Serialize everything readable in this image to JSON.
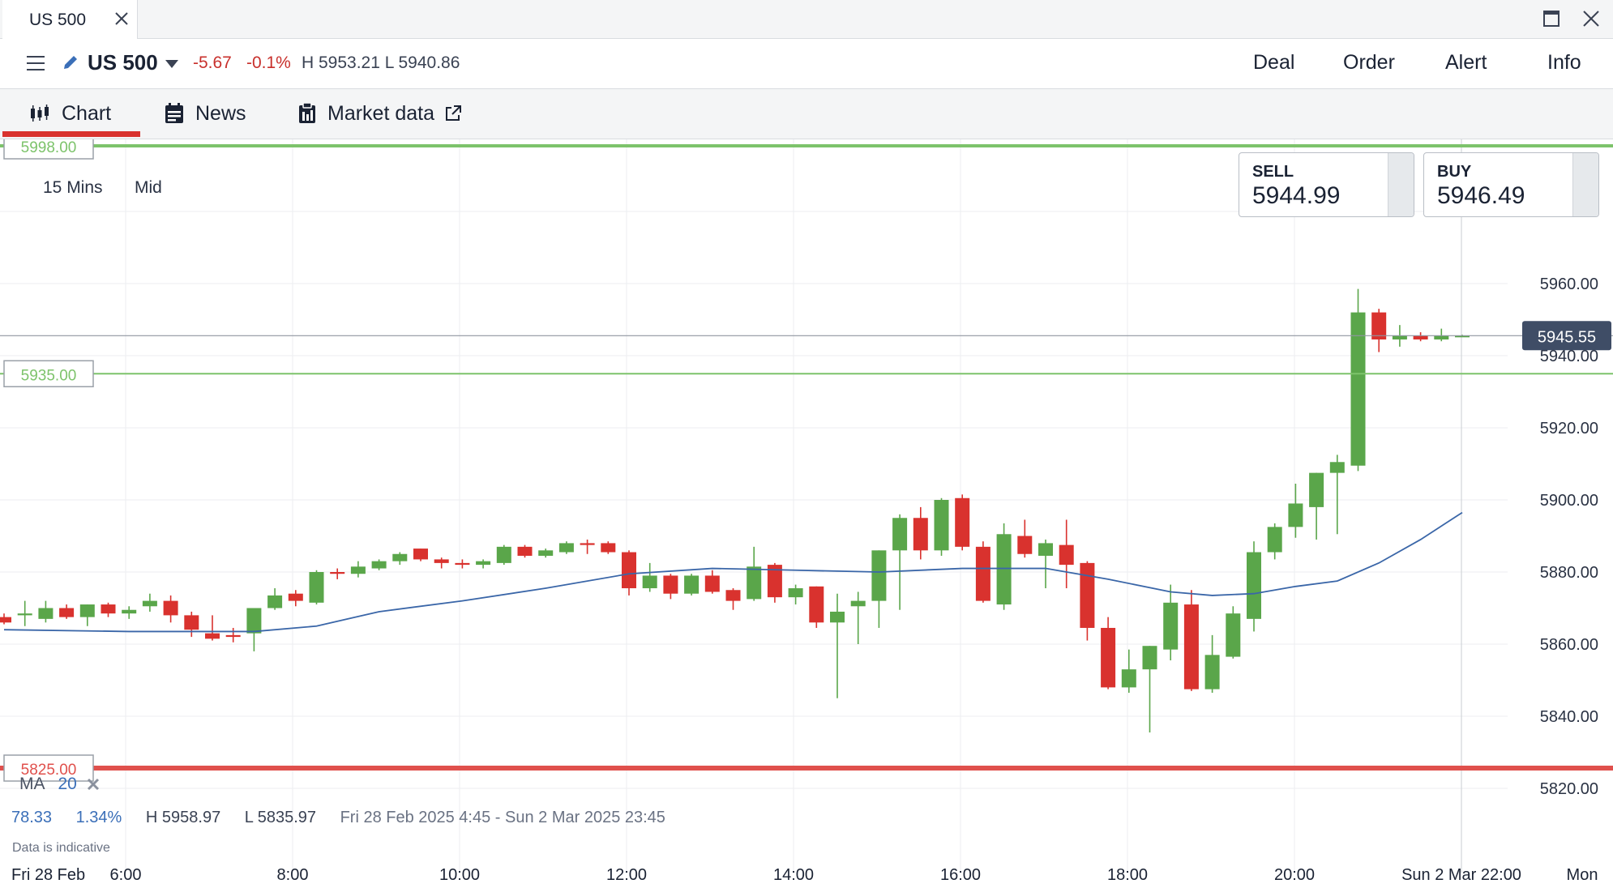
{
  "window": {
    "tab_title": "US 500"
  },
  "header": {
    "instrument": "US 500",
    "change_points": "-5.67",
    "change_percent": "-0.1%",
    "high_low": "H 5953.21  L 5940.86",
    "actions": [
      "Deal",
      "Order",
      "Alert",
      "Info"
    ]
  },
  "subtabs": {
    "chart": "Chart",
    "news": "News",
    "market_data": "Market data"
  },
  "chart": {
    "timeframe": "15 Mins",
    "price_mode": "Mid",
    "sell_label": "SELL",
    "sell_price": "5944.99",
    "buy_label": "BUY",
    "buy_price": "5946.49",
    "current_price": "5945.55",
    "ma_name": "MA",
    "ma_period": "20",
    "stat_change": "78.33",
    "stat_percent": "1.34%",
    "stat_high": "H 5958.97",
    "stat_low": "L 5835.97",
    "stat_range": "Fri 28 Feb 2025 4:45 - Sun 2 Mar 2025 23:45",
    "disclaimer": "Data is indicative",
    "colors": {
      "up": "#5aa64a",
      "down": "#d9322e",
      "ma": "#3a66a8",
      "level_green": "#7dc36b",
      "level_red": "#e0504c"
    }
  },
  "chart_data": {
    "type": "candlestick",
    "y_ticks": [
      "5960.00",
      "5940.00",
      "5920.00",
      "5900.00",
      "5880.00",
      "5860.00",
      "5840.00",
      "5820.00"
    ],
    "ylim": [
      5816,
      5998
    ],
    "x_ticks": [
      "Fri 28 Feb",
      "6:00",
      "8:00",
      "10:00",
      "12:00",
      "14:00",
      "16:00",
      "18:00",
      "20:00",
      "Sun 2 Mar 22:00",
      "Mon"
    ],
    "levels": [
      {
        "value": 5998.0,
        "label": "5998.00",
        "color": "green"
      },
      {
        "value": 5935.0,
        "label": "5935.00",
        "color": "green"
      },
      {
        "value": 5825.0,
        "label": "5825.00",
        "color": "red"
      }
    ],
    "current_price": 5945.55,
    "candles": [
      {
        "t": "4:45",
        "o": 5867.5,
        "h": 5868.5,
        "l": 5865.5,
        "c": 5866.0
      },
      {
        "t": "5:00",
        "o": 5868.0,
        "h": 5872.0,
        "l": 5865.0,
        "c": 5868.5
      },
      {
        "t": "5:15",
        "o": 5867.0,
        "h": 5872.0,
        "l": 5866.0,
        "c": 5870.0
      },
      {
        "t": "5:30",
        "o": 5870.0,
        "h": 5871.0,
        "l": 5867.0,
        "c": 5867.5
      },
      {
        "t": "5:45",
        "o": 5867.5,
        "h": 5871.0,
        "l": 5865.0,
        "c": 5871.0
      },
      {
        "t": "6:00",
        "o": 5871.0,
        "h": 5871.5,
        "l": 5867.5,
        "c": 5868.5
      },
      {
        "t": "6:15",
        "o": 5868.5,
        "h": 5870.5,
        "l": 5867.0,
        "c": 5869.5
      },
      {
        "t": "6:30",
        "o": 5870.5,
        "h": 5874.0,
        "l": 5869.0,
        "c": 5872.0
      },
      {
        "t": "6:45",
        "o": 5872.0,
        "h": 5873.5,
        "l": 5866.0,
        "c": 5868.0
      },
      {
        "t": "7:00",
        "o": 5868.0,
        "h": 5869.0,
        "l": 5862.0,
        "c": 5864.0
      },
      {
        "t": "7:15",
        "o": 5863.0,
        "h": 5868.0,
        "l": 5861.0,
        "c": 5861.5
      },
      {
        "t": "7:30",
        "o": 5862.5,
        "h": 5864.5,
        "l": 5860.5,
        "c": 5862.0
      },
      {
        "t": "7:45",
        "o": 5863.0,
        "h": 5870.0,
        "l": 5858.0,
        "c": 5870.0
      },
      {
        "t": "8:00",
        "o": 5870.0,
        "h": 5875.5,
        "l": 5869.5,
        "c": 5873.5
      },
      {
        "t": "8:15",
        "o": 5874.0,
        "h": 5875.0,
        "l": 5870.5,
        "c": 5872.0
      },
      {
        "t": "8:30",
        "o": 5871.5,
        "h": 5880.5,
        "l": 5871.0,
        "c": 5880.0
      },
      {
        "t": "8:45",
        "o": 5880.0,
        "h": 5881.0,
        "l": 5878.0,
        "c": 5879.5
      },
      {
        "t": "9:00",
        "o": 5879.5,
        "h": 5883.0,
        "l": 5878.5,
        "c": 5881.5
      },
      {
        "t": "9:15",
        "o": 5881.0,
        "h": 5883.5,
        "l": 5880.5,
        "c": 5883.0
      },
      {
        "t": "9:30",
        "o": 5883.0,
        "h": 5885.5,
        "l": 5882.0,
        "c": 5885.0
      },
      {
        "t": "9:45",
        "o": 5886.5,
        "h": 5886.5,
        "l": 5883.0,
        "c": 5883.5
      },
      {
        "t": "10:00",
        "o": 5883.5,
        "h": 5884.0,
        "l": 5881.0,
        "c": 5882.5
      },
      {
        "t": "10:15",
        "o": 5882.5,
        "h": 5883.5,
        "l": 5881.0,
        "c": 5882.0
      },
      {
        "t": "10:30",
        "o": 5882.0,
        "h": 5883.5,
        "l": 5881.0,
        "c": 5883.0
      },
      {
        "t": "10:45",
        "o": 5882.5,
        "h": 5887.5,
        "l": 5882.0,
        "c": 5887.0
      },
      {
        "t": "11:00",
        "o": 5887.0,
        "h": 5887.5,
        "l": 5884.0,
        "c": 5884.5
      },
      {
        "t": "11:15",
        "o": 5884.5,
        "h": 5886.5,
        "l": 5884.0,
        "c": 5886.0
      },
      {
        "t": "11:30",
        "o": 5885.5,
        "h": 5888.5,
        "l": 5885.0,
        "c": 5888.0
      },
      {
        "t": "11:45",
        "o": 5888.0,
        "h": 5889.0,
        "l": 5885.0,
        "c": 5887.5
      },
      {
        "t": "12:00",
        "o": 5888.0,
        "h": 5888.5,
        "l": 5885.0,
        "c": 5885.5
      },
      {
        "t": "12:15",
        "o": 5885.5,
        "h": 5886.0,
        "l": 5873.5,
        "c": 5875.5
      },
      {
        "t": "12:30",
        "o": 5875.5,
        "h": 5882.5,
        "l": 5874.5,
        "c": 5879.0
      },
      {
        "t": "12:45",
        "o": 5879.0,
        "h": 5879.5,
        "l": 5872.5,
        "c": 5874.0
      },
      {
        "t": "13:00",
        "o": 5874.0,
        "h": 5879.5,
        "l": 5873.5,
        "c": 5879.0
      },
      {
        "t": "13:15",
        "o": 5879.0,
        "h": 5880.5,
        "l": 5874.0,
        "c": 5874.5
      },
      {
        "t": "13:30",
        "o": 5875.0,
        "h": 5875.5,
        "l": 5869.5,
        "c": 5872.0
      },
      {
        "t": "13:45",
        "o": 5872.5,
        "h": 5887.0,
        "l": 5872.0,
        "c": 5881.5
      },
      {
        "t": "14:00",
        "o": 5882.0,
        "h": 5882.5,
        "l": 5871.5,
        "c": 5873.0
      },
      {
        "t": "14:15",
        "o": 5873.0,
        "h": 5876.5,
        "l": 5871.0,
        "c": 5875.5
      },
      {
        "t": "14:30",
        "o": 5876.0,
        "h": 5876.0,
        "l": 5864.5,
        "c": 5866.0
      },
      {
        "t": "14:45",
        "o": 5866.0,
        "h": 5874.0,
        "l": 5845.0,
        "c": 5869.0
      },
      {
        "t": "15:00",
        "o": 5870.5,
        "h": 5874.5,
        "l": 5860.0,
        "c": 5872.0
      },
      {
        "t": "15:15",
        "o": 5872.0,
        "h": 5886.0,
        "l": 5864.5,
        "c": 5886.0
      },
      {
        "t": "15:30",
        "o": 5886.0,
        "h": 5896.0,
        "l": 5869.5,
        "c": 5895.0
      },
      {
        "t": "15:45",
        "o": 5895.0,
        "h": 5898.0,
        "l": 5883.5,
        "c": 5886.0
      },
      {
        "t": "16:00",
        "o": 5886.0,
        "h": 5900.5,
        "l": 5884.5,
        "c": 5900.0
      },
      {
        "t": "16:15",
        "o": 5900.5,
        "h": 5901.5,
        "l": 5886.0,
        "c": 5887.0
      },
      {
        "t": "16:30",
        "o": 5887.0,
        "h": 5888.5,
        "l": 5871.5,
        "c": 5872.0
      },
      {
        "t": "16:45",
        "o": 5871.0,
        "h": 5893.5,
        "l": 5869.5,
        "c": 5890.5
      },
      {
        "t": "17:00",
        "o": 5890.0,
        "h": 5894.5,
        "l": 5884.0,
        "c": 5885.0
      },
      {
        "t": "17:15",
        "o": 5884.5,
        "h": 5889.0,
        "l": 5875.5,
        "c": 5888.0
      },
      {
        "t": "17:30",
        "o": 5887.5,
        "h": 5894.5,
        "l": 5875.5,
        "c": 5882.0
      },
      {
        "t": "17:45",
        "o": 5882.5,
        "h": 5883.0,
        "l": 5861.0,
        "c": 5864.5
      },
      {
        "t": "18:00",
        "o": 5864.5,
        "h": 5867.5,
        "l": 5847.5,
        "c": 5848.0
      },
      {
        "t": "18:15",
        "o": 5848.0,
        "h": 5858.5,
        "l": 5846.5,
        "c": 5853.0
      },
      {
        "t": "18:30",
        "o": 5853.0,
        "h": 5859.5,
        "l": 5835.5,
        "c": 5859.5
      },
      {
        "t": "18:45",
        "o": 5858.5,
        "h": 5876.5,
        "l": 5855.5,
        "c": 5871.5
      },
      {
        "t": "19:00",
        "o": 5871.0,
        "h": 5875.0,
        "l": 5847.0,
        "c": 5847.5
      },
      {
        "t": "19:15",
        "o": 5847.5,
        "h": 5862.5,
        "l": 5846.5,
        "c": 5857.0
      },
      {
        "t": "19:30",
        "o": 5856.5,
        "h": 5870.5,
        "l": 5856.0,
        "c": 5868.5
      },
      {
        "t": "19:45",
        "o": 5867.0,
        "h": 5888.5,
        "l": 5863.5,
        "c": 5885.5
      },
      {
        "t": "20:00",
        "o": 5885.5,
        "h": 5893.5,
        "l": 5883.5,
        "c": 5892.5
      },
      {
        "t": "20:15",
        "o": 5892.5,
        "h": 5904.5,
        "l": 5889.5,
        "c": 5899.0
      },
      {
        "t": "20:30",
        "o": 5898.0,
        "h": 5907.5,
        "l": 5889.0,
        "c": 5907.5
      },
      {
        "t": "20:45",
        "o": 5907.5,
        "h": 5912.5,
        "l": 5890.5,
        "c": 5910.5
      },
      {
        "t": "21:00",
        "o": 5909.5,
        "h": 5958.5,
        "l": 5908.0,
        "c": 5952.0
      },
      {
        "t": "21:15",
        "o": 5952.0,
        "h": 5953.0,
        "l": 5941.0,
        "c": 5944.5
      },
      {
        "t": "21:30",
        "o": 5944.5,
        "h": 5948.5,
        "l": 5942.5,
        "c": 5945.5
      },
      {
        "t": "21:45",
        "o": 5945.5,
        "h": 5946.5,
        "l": 5944.0,
        "c": 5944.5
      },
      {
        "t": "22:00",
        "o": 5944.5,
        "h": 5947.5,
        "l": 5944.0,
        "c": 5945.5
      },
      {
        "t": "22:15",
        "o": 5945.5,
        "h": 5945.8,
        "l": 5945.3,
        "c": 5945.55
      }
    ],
    "ma20": [
      [
        0,
        5864.0
      ],
      [
        6,
        5863.5
      ],
      [
        12,
        5863.5
      ],
      [
        15,
        5865.0
      ],
      [
        18,
        5869.0
      ],
      [
        22,
        5872.0
      ],
      [
        26,
        5875.5
      ],
      [
        30,
        5879.5
      ],
      [
        34,
        5881.0
      ],
      [
        38,
        5880.5
      ],
      [
        42,
        5880.0
      ],
      [
        46,
        5881.0
      ],
      [
        50,
        5881.0
      ],
      [
        53,
        5878.0
      ],
      [
        56,
        5874.5
      ],
      [
        58,
        5873.5
      ],
      [
        60,
        5874.0
      ],
      [
        62,
        5876.0
      ],
      [
        64,
        5877.5
      ],
      [
        66,
        5882.5
      ],
      [
        68,
        5889.0
      ],
      [
        70,
        5896.5
      ]
    ]
  }
}
